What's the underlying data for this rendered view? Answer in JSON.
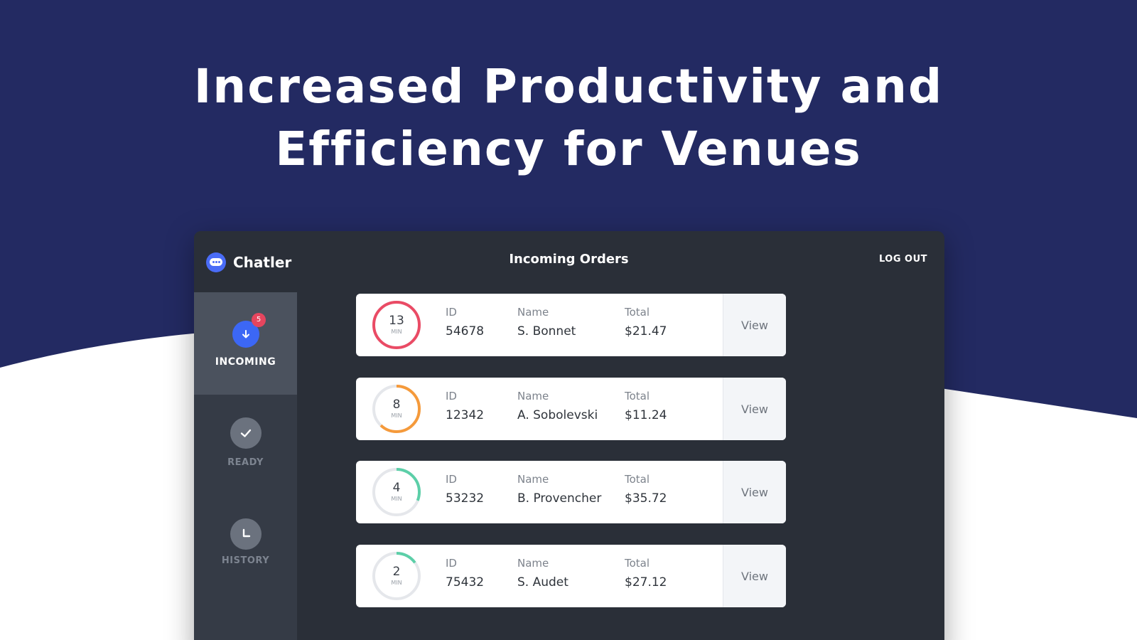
{
  "headline": {
    "line1": "Increased Productivity and",
    "line2": "Efficiency for Venues"
  },
  "colors": {
    "navy": "#232a62",
    "app_bg": "#2a2f38",
    "sidebar_bg": "#353b46",
    "accent_blue": "#3c67f5",
    "badge_red": "#e6455e",
    "timer_red": "#ea4b65",
    "timer_orange": "#f59a3b",
    "timer_green": "#5ccfa8",
    "timer_track": "#e5e7eb"
  },
  "app": {
    "brand_name": "Chatler",
    "brand_icon": "chat-bubble-icon",
    "title": "Incoming Orders",
    "logout_label": "LOG OUT",
    "nav": {
      "incoming": {
        "label": "INCOMING",
        "icon": "arrow-down-icon",
        "badge": "5"
      },
      "ready": {
        "label": "READY",
        "icon": "check-icon"
      },
      "history": {
        "label": "HISTORY",
        "icon": "clock-icon"
      }
    },
    "labels": {
      "id": "ID",
      "name": "Name",
      "total": "Total",
      "view": "View",
      "min": "MIN"
    },
    "orders": [
      {
        "minutes": "13",
        "progress": 1.0,
        "color": "#ea4b65",
        "id": "54678",
        "name": "S. Bonnet",
        "total": "$21.47"
      },
      {
        "minutes": "8",
        "progress": 0.62,
        "color": "#f59a3b",
        "id": "12342",
        "name": "A. Sobolevski",
        "total": "$11.24"
      },
      {
        "minutes": "4",
        "progress": 0.31,
        "color": "#5ccfa8",
        "id": "53232",
        "name": "B. Provencher",
        "total": "$35.72"
      },
      {
        "minutes": "2",
        "progress": 0.15,
        "color": "#5ccfa8",
        "id": "75432",
        "name": "S. Audet",
        "total": "$27.12"
      }
    ]
  }
}
